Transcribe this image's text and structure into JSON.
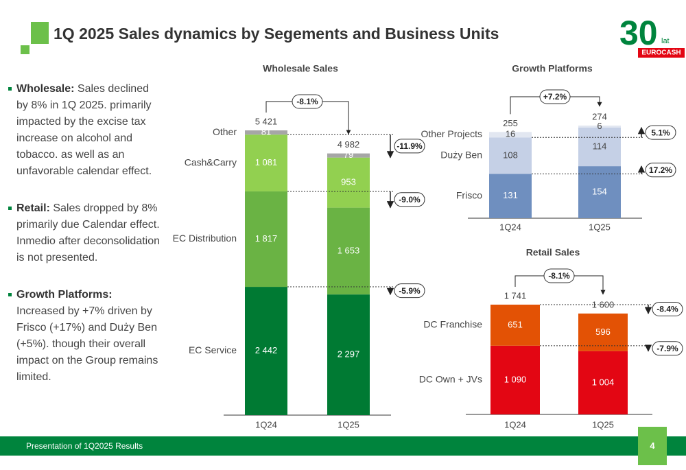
{
  "title": "1Q 2025 Sales dynamics by Segements and Business Units",
  "logo": {
    "number": "30",
    "suffix": "lat",
    "brand": "EUROCASH"
  },
  "bullets": [
    {
      "label": "Wholesale:",
      "text": "Sales declined by 8% in 1Q 2025. primarily impacted by the excise tax increase on alcohol and tobacco. as well as an unfavorable calendar effect."
    },
    {
      "label": "Retail:",
      "text": "Sales dropped by 8% primarily due Calendar effect. Inmedio after deconsolidation is not presented."
    },
    {
      "label": "Growth Platforms:",
      "text": "Increased by +7% driven by Frisco (+17%) and Duży Ben (+5%). though their overall impact on the Group remains limited."
    }
  ],
  "footer": "Presentation of 1Q2025 Results",
  "page_number": "4",
  "chart_data": [
    {
      "type": "stacked_bar",
      "title": "Wholesale Sales",
      "categories": [
        "1Q24",
        "1Q25"
      ],
      "totals": [
        5421,
        4982
      ],
      "total_labels": [
        "5 421",
        "4 982"
      ],
      "change": "-8.1%",
      "series": [
        {
          "name": "EC Service",
          "color": "#007a33",
          "label_color": "#ffffff",
          "values": [
            2442,
            2297
          ],
          "value_labels": [
            "2 442",
            "2 297"
          ],
          "change": "-5.9%"
        },
        {
          "name": "EC Distribution",
          "color": "#6ab344",
          "label_color": "#ffffff",
          "values": [
            1817,
            1653
          ],
          "value_labels": [
            "1 817",
            "1 653"
          ],
          "change": "-9.0%"
        },
        {
          "name": "Cash&Carry",
          "color": "#92d050",
          "label_color": "#ffffff",
          "values": [
            1081,
            953
          ],
          "value_labels": [
            "1 081",
            "953"
          ],
          "change": "-11.9%"
        },
        {
          "name": "Other",
          "color": "#a6a6a6",
          "label_color": "#ffffff",
          "values": [
            81,
            79
          ]
        }
      ]
    },
    {
      "type": "stacked_bar",
      "title": "Growth Platforms",
      "categories": [
        "1Q24",
        "1Q25"
      ],
      "totals": [
        255,
        274
      ],
      "change": "+7.2%",
      "series": [
        {
          "name": "Frisco",
          "color": "#6f8fbf",
          "label_color": "#ffffff",
          "values": [
            131,
            154
          ],
          "change": "17.2%"
        },
        {
          "name": "Duży Ben",
          "color": "#c5d0e6",
          "label_color": "#444444",
          "values": [
            108,
            114
          ],
          "change": "5.1%"
        },
        {
          "name": "Other Projects",
          "color": "#e2e7f1",
          "label_color": "#444444",
          "values": [
            16,
            6
          ]
        }
      ]
    },
    {
      "type": "stacked_bar",
      "title": "Retail Sales",
      "categories": [
        "1Q24",
        "1Q25"
      ],
      "totals": [
        1741,
        1600
      ],
      "total_labels": [
        "1 741",
        "1 600"
      ],
      "change": "-8.1%",
      "series": [
        {
          "name": "DC  Own + JVs",
          "color": "#e30613",
          "label_color": "#ffffff",
          "values": [
            1090,
            1004
          ],
          "value_labels": [
            "1 090",
            "1 004"
          ],
          "change": "-7.9%"
        },
        {
          "name": "DC Franchise",
          "color": "#e35205",
          "label_color": "#ffffff",
          "values": [
            651,
            596
          ],
          "change": "-8.4%"
        }
      ]
    }
  ]
}
